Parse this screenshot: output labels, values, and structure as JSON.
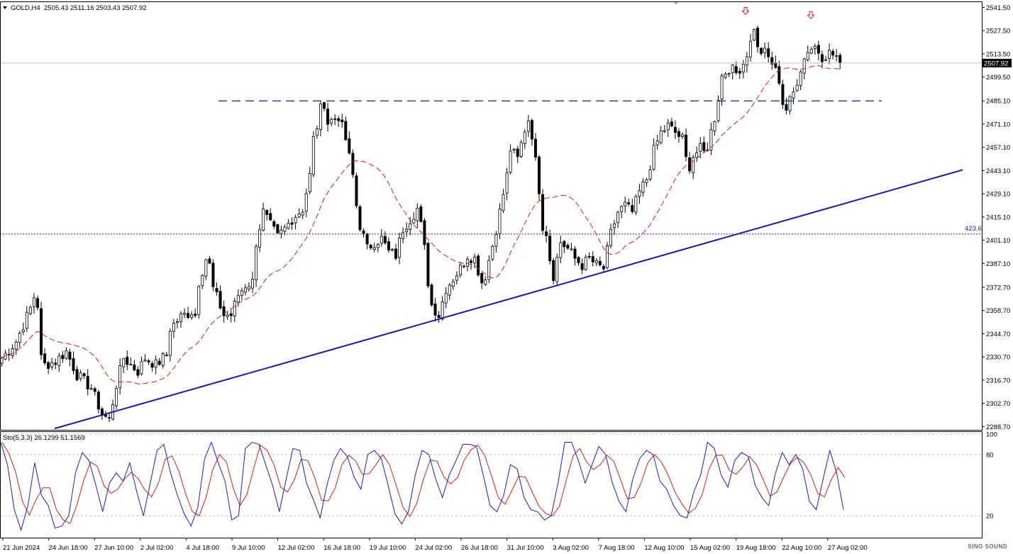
{
  "header": {
    "symbol": "GOLD,H4",
    "ohlc": "2505.43 2511.16 2503.43 2507.92"
  },
  "indicator": {
    "label": "Sto(5,3,3) 26.1299 51.1569",
    "levels": [
      "100",
      "80",
      "20"
    ]
  },
  "price_tag": "2507.92",
  "fib_label": "423.6",
  "watermark": "SINO SOUND",
  "chart_data": [
    {
      "type": "candlestick",
      "title": "GOLD,H4",
      "ylim": [
        2286.7,
        2545.1
      ],
      "y_ticks": [
        "2541.50",
        "2527.50",
        "2513.50",
        "2499.50",
        "2485.10",
        "2471.10",
        "2457.10",
        "2443.10",
        "2429.10",
        "2415.10",
        "2401.10",
        "2387.10",
        "2372.70",
        "2358.70",
        "2344.70",
        "2330.70",
        "2316.70",
        "2302.70",
        "2288.70"
      ],
      "x_ticks": [
        "21 Jun 2024",
        "24 Jun 18:00",
        "27 Jun 10:00",
        "2 Jul 02:00",
        "4 Jul 18:00",
        "9 Jul 10:00",
        "12 Jul 02:00",
        "16 Jul 18:00",
        "19 Jul 10:00",
        "24 Jul 02:00",
        "26 Jul 18:00",
        "31 Jul 10:00",
        "3 Aug 02:00",
        "7 Aug 18:00",
        "12 Aug 10:00",
        "15 Aug 02:00",
        "19 Aug 18:00",
        "22 Aug 10:00",
        "27 Aug 02:00"
      ],
      "close_path": [
        [
          0,
          2330
        ],
        [
          4,
          2340
        ],
        [
          8,
          2360
        ],
        [
          9,
          2367
        ],
        [
          10,
          2362
        ],
        [
          11,
          2330
        ],
        [
          12,
          2326
        ],
        [
          15,
          2328
        ],
        [
          18,
          2334
        ],
        [
          21,
          2320
        ],
        [
          25,
          2312
        ],
        [
          28,
          2296
        ],
        [
          30,
          2293
        ],
        [
          32,
          2314
        ],
        [
          34,
          2330
        ],
        [
          36,
          2326
        ],
        [
          38,
          2322
        ],
        [
          40,
          2330
        ],
        [
          43,
          2326
        ],
        [
          46,
          2332
        ],
        [
          47,
          2348
        ],
        [
          50,
          2355
        ],
        [
          53,
          2358
        ],
        [
          54,
          2356
        ],
        [
          55,
          2376
        ],
        [
          57,
          2390
        ],
        [
          58,
          2386
        ],
        [
          59,
          2372
        ],
        [
          62,
          2356
        ],
        [
          64,
          2356
        ],
        [
          66,
          2368
        ],
        [
          68,
          2374
        ],
        [
          70,
          2376
        ],
        [
          71,
          2400
        ],
        [
          73,
          2418
        ],
        [
          75,
          2410
        ],
        [
          77,
          2403
        ],
        [
          79,
          2408
        ],
        [
          81,
          2414
        ],
        [
          84,
          2420
        ],
        [
          86,
          2440
        ],
        [
          87,
          2462
        ],
        [
          88,
          2470
        ],
        [
          89,
          2480
        ],
        [
          90,
          2484
        ],
        [
          91,
          2472
        ],
        [
          94,
          2476
        ],
        [
          96,
          2462
        ],
        [
          98,
          2440
        ],
        [
          99,
          2422
        ],
        [
          100,
          2410
        ],
        [
          102,
          2396
        ],
        [
          104,
          2400
        ],
        [
          106,
          2402
        ],
        [
          108,
          2394
        ],
        [
          110,
          2392
        ],
        [
          112,
          2408
        ],
        [
          114,
          2414
        ],
        [
          116,
          2420
        ],
        [
          117,
          2410
        ],
        [
          118,
          2396
        ],
        [
          119,
          2376
        ],
        [
          120,
          2362
        ],
        [
          122,
          2356
        ],
        [
          124,
          2372
        ],
        [
          126,
          2378
        ],
        [
          128,
          2384
        ],
        [
          130,
          2392
        ],
        [
          132,
          2390
        ],
        [
          134,
          2376
        ],
        [
          135,
          2380
        ],
        [
          137,
          2398
        ],
        [
          139,
          2418
        ],
        [
          141,
          2440
        ],
        [
          142,
          2456
        ],
        [
          144,
          2450
        ],
        [
          146,
          2468
        ],
        [
          147,
          2474
        ],
        [
          148,
          2465
        ],
        [
          150,
          2432
        ],
        [
          151,
          2410
        ],
        [
          152,
          2406
        ],
        [
          153,
          2390
        ],
        [
          154,
          2380
        ],
        [
          156,
          2400
        ],
        [
          158,
          2396
        ],
        [
          160,
          2390
        ],
        [
          162,
          2386
        ],
        [
          164,
          2390
        ],
        [
          166,
          2386
        ],
        [
          168,
          2384
        ],
        [
          170,
          2405
        ],
        [
          172,
          2418
        ],
        [
          174,
          2422
        ],
        [
          176,
          2418
        ],
        [
          178,
          2430
        ],
        [
          180,
          2438
        ],
        [
          182,
          2455
        ],
        [
          184,
          2466
        ],
        [
          186,
          2470
        ],
        [
          188,
          2466
        ],
        [
          190,
          2462
        ],
        [
          191,
          2450
        ],
        [
          192,
          2446
        ],
        [
          193,
          2452
        ],
        [
          195,
          2456
        ],
        [
          196,
          2454
        ],
        [
          197,
          2458
        ],
        [
          199,
          2475
        ],
        [
          201,
          2500
        ],
        [
          203,
          2505
        ],
        [
          205,
          2502
        ],
        [
          207,
          2508
        ],
        [
          209,
          2520
        ],
        [
          210,
          2530
        ],
        [
          211,
          2516
        ],
        [
          213,
          2514
        ],
        [
          215,
          2508
        ],
        [
          217,
          2498
        ],
        [
          218,
          2484
        ],
        [
          219,
          2480
        ],
        [
          221,
          2490
        ],
        [
          223,
          2505
        ],
        [
          225,
          2516
        ],
        [
          227,
          2518
        ],
        [
          229,
          2512
        ],
        [
          231,
          2514
        ],
        [
          233,
          2512
        ],
        [
          234,
          2508
        ]
      ],
      "price_now": 2507.92,
      "ma_color": "#d42020",
      "support_line_color": "#1a1aa8",
      "resistance_dash_level": 2485.1,
      "fib_level_4236": 2404.8,
      "top_arrows": 2,
      "up_color": "#000000",
      "down_color": "#000000"
    },
    {
      "type": "line",
      "title": "Sto(5,3,3) 26.1299 51.1569",
      "ylim": [
        0,
        100
      ],
      "levels": [
        100,
        80,
        20
      ],
      "series": [
        {
          "name": "",
          "color": "#1c1cc8"
        },
        {
          "name": "",
          "color": "#d42020"
        }
      ],
      "main_values": [
        92,
        70,
        26,
        6,
        30,
        72,
        40,
        30,
        8,
        10,
        20,
        62,
        82,
        74,
        50,
        24,
        52,
        62,
        54,
        72,
        44,
        20,
        52,
        84,
        90,
        62,
        40,
        22,
        10,
        28,
        76,
        92,
        72,
        54,
        16,
        20,
        86,
        92,
        90,
        70,
        50,
        24,
        56,
        86,
        84,
        52,
        36,
        18,
        50,
        74,
        86,
        78,
        58,
        46,
        80,
        84,
        76,
        50,
        22,
        12,
        24,
        60,
        84,
        80,
        56,
        38,
        60,
        74,
        90,
        90,
        88,
        60,
        30,
        24,
        40,
        70,
        66,
        38,
        26,
        24,
        16,
        20,
        52,
        92,
        92,
        74,
        52,
        70,
        88,
        80,
        52,
        34,
        24,
        56,
        76,
        84,
        80,
        54,
        46,
        30,
        20,
        18,
        44,
        60,
        92,
        86,
        60,
        48,
        74,
        82,
        78,
        50,
        38,
        30,
        62,
        82,
        70,
        80,
        66,
        34,
        26,
        56,
        84,
        62,
        26
      ]
    }
  ]
}
